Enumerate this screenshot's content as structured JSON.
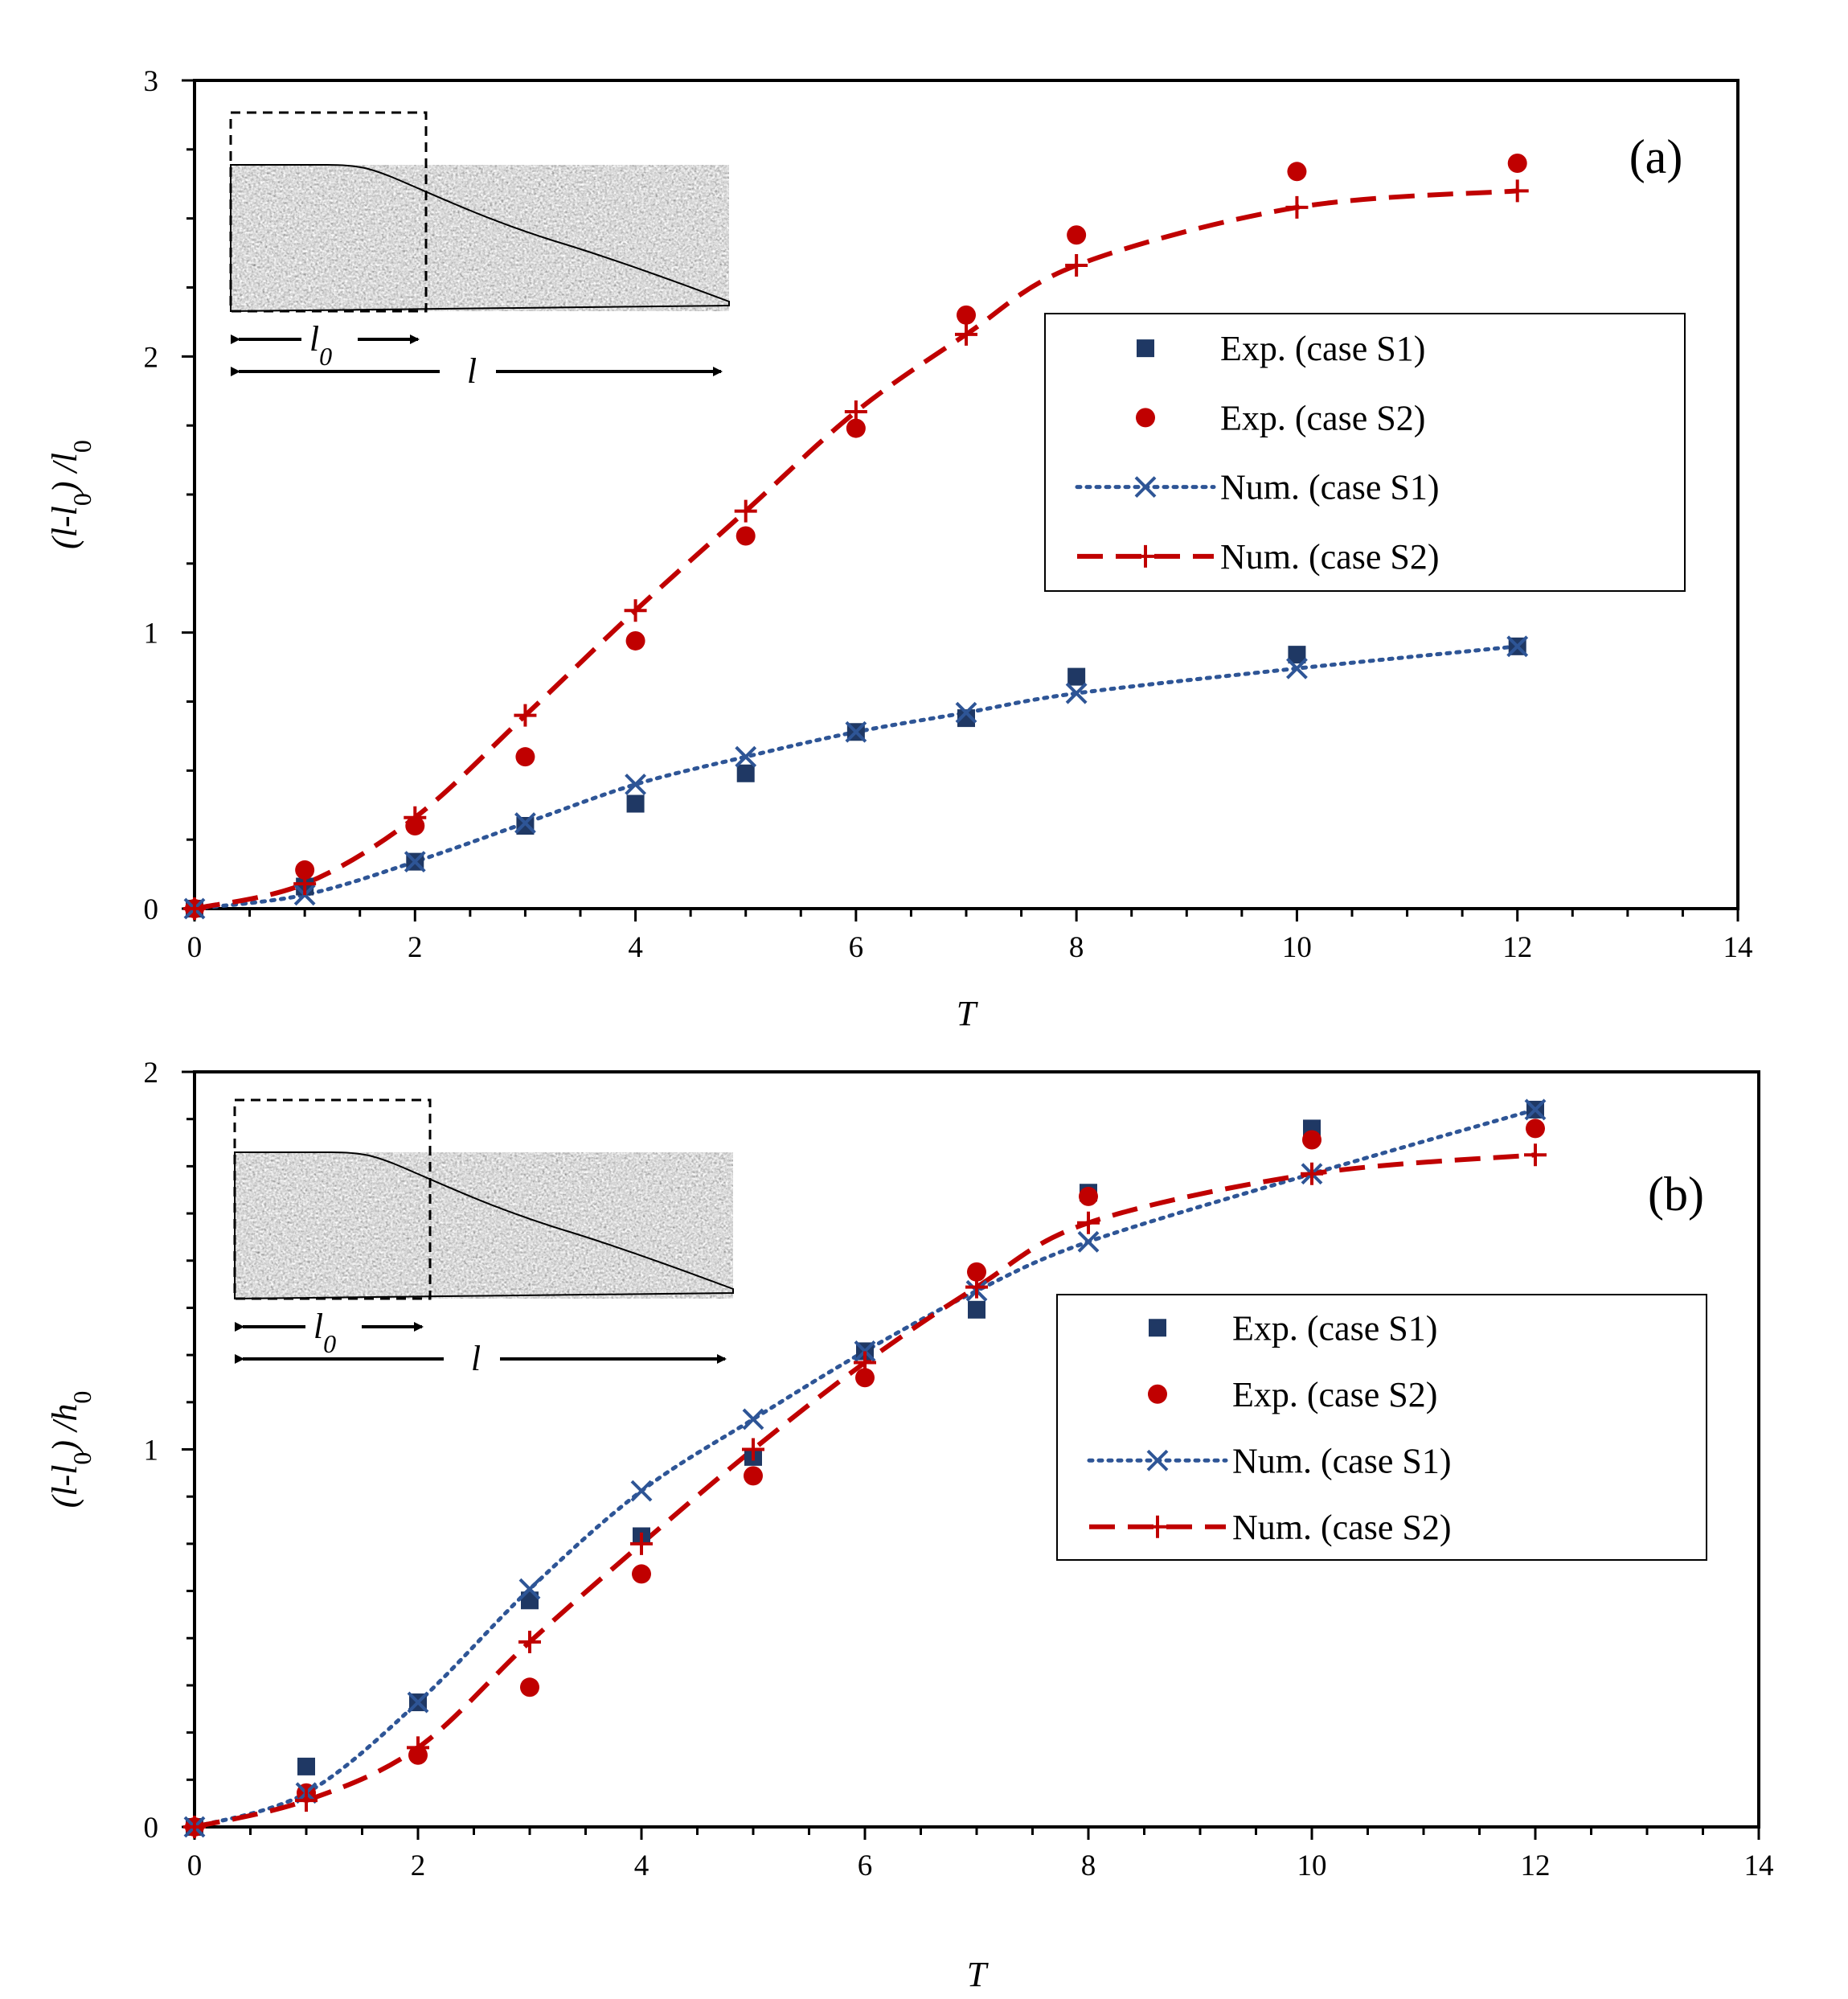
{
  "chart_data": [
    {
      "type": "line",
      "panel_label": "(a)",
      "xlabel": "T",
      "ylabel_main": "(l-l",
      "ylabel_sub": "0",
      "ylabel_mid": ") /l",
      "ylabel_sub2": "0",
      "xlim": [
        0,
        14
      ],
      "ylim": [
        0,
        3
      ],
      "xticks": [
        "0",
        "2",
        "4",
        "6",
        "8",
        "10",
        "12",
        "14"
      ],
      "yticks": [
        "0",
        "1",
        "2",
        "3"
      ],
      "legend_position": "right-middle",
      "series": [
        {
          "name": "Exp. (case S1)",
          "marker": "square",
          "color": "#1f3864",
          "x": [
            0,
            1,
            2,
            3,
            4,
            5,
            6,
            7,
            8,
            10,
            12
          ],
          "y": [
            0,
            0.08,
            0.17,
            0.3,
            0.38,
            0.49,
            0.64,
            0.69,
            0.84,
            0.92,
            0.95
          ]
        },
        {
          "name": "Exp. (case S2)",
          "marker": "circle",
          "color": "#c00000",
          "x": [
            0,
            1,
            2,
            3,
            4,
            5,
            6,
            7,
            8,
            10,
            12
          ],
          "y": [
            0,
            0.14,
            0.3,
            0.55,
            0.97,
            1.35,
            1.74,
            2.15,
            2.44,
            2.67,
            2.7
          ]
        },
        {
          "name": "Num. (case S1)",
          "marker": "x",
          "color": "#2e5596",
          "line": "dotted",
          "x": [
            0,
            1,
            2,
            3,
            4,
            5,
            6,
            7,
            8,
            10,
            12
          ],
          "y": [
            0,
            0.05,
            0.17,
            0.31,
            0.45,
            0.55,
            0.64,
            0.71,
            0.78,
            0.87,
            0.95
          ]
        },
        {
          "name": "Num. (case S2)",
          "marker": "plus",
          "color": "#c00000",
          "line": "dashed",
          "x": [
            0,
            1,
            2,
            3,
            4,
            5,
            6,
            7,
            8,
            10,
            12
          ],
          "y": [
            0,
            0.09,
            0.33,
            0.7,
            1.08,
            1.44,
            1.8,
            2.08,
            2.33,
            2.54,
            2.6
          ]
        }
      ],
      "inset": {
        "label_l0": "l",
        "label_l0_sub": "0",
        "label_l": "l"
      }
    },
    {
      "type": "line",
      "panel_label": "(b)",
      "xlabel": "T",
      "ylabel_main": "(l-l",
      "ylabel_sub": "0",
      "ylabel_mid": ") /h",
      "ylabel_sub2": "0",
      "xlim": [
        0,
        14
      ],
      "ylim": [
        0,
        2
      ],
      "xticks": [
        "0",
        "2",
        "4",
        "6",
        "8",
        "10",
        "12",
        "14"
      ],
      "yticks": [
        "0",
        "1",
        "2"
      ],
      "legend_position": "right-middle",
      "series": [
        {
          "name": "Exp. (case S1)",
          "marker": "square",
          "color": "#1f3864",
          "x": [
            0,
            1,
            2,
            3,
            4,
            5,
            6,
            7,
            8,
            10,
            12
          ],
          "y": [
            0,
            0.16,
            0.33,
            0.6,
            0.77,
            0.98,
            1.26,
            1.37,
            1.68,
            1.85,
            1.9
          ]
        },
        {
          "name": "Exp. (case S2)",
          "marker": "circle",
          "color": "#c00000",
          "x": [
            0,
            1,
            2,
            3,
            4,
            5,
            6,
            7,
            8,
            10,
            12
          ],
          "y": [
            0,
            0.09,
            0.19,
            0.37,
            0.67,
            0.93,
            1.19,
            1.47,
            1.67,
            1.82,
            1.85
          ]
        },
        {
          "name": "Num. (case S1)",
          "marker": "x",
          "color": "#2e5596",
          "line": "dotted",
          "x": [
            0,
            1,
            2,
            3,
            4,
            5,
            6,
            7,
            8,
            10,
            12
          ],
          "y": [
            0,
            0.09,
            0.33,
            0.63,
            0.89,
            1.08,
            1.26,
            1.42,
            1.55,
            1.73,
            1.9
          ]
        },
        {
          "name": "Num. (case S2)",
          "marker": "plus",
          "color": "#c00000",
          "line": "dashed",
          "x": [
            0,
            1,
            2,
            3,
            4,
            5,
            6,
            7,
            8,
            10,
            12
          ],
          "y": [
            0,
            0.07,
            0.21,
            0.49,
            0.75,
            1.0,
            1.23,
            1.43,
            1.6,
            1.73,
            1.78
          ]
        }
      ],
      "inset": {
        "label_l0": "l",
        "label_l0_sub": "0",
        "label_l": "l"
      }
    }
  ]
}
